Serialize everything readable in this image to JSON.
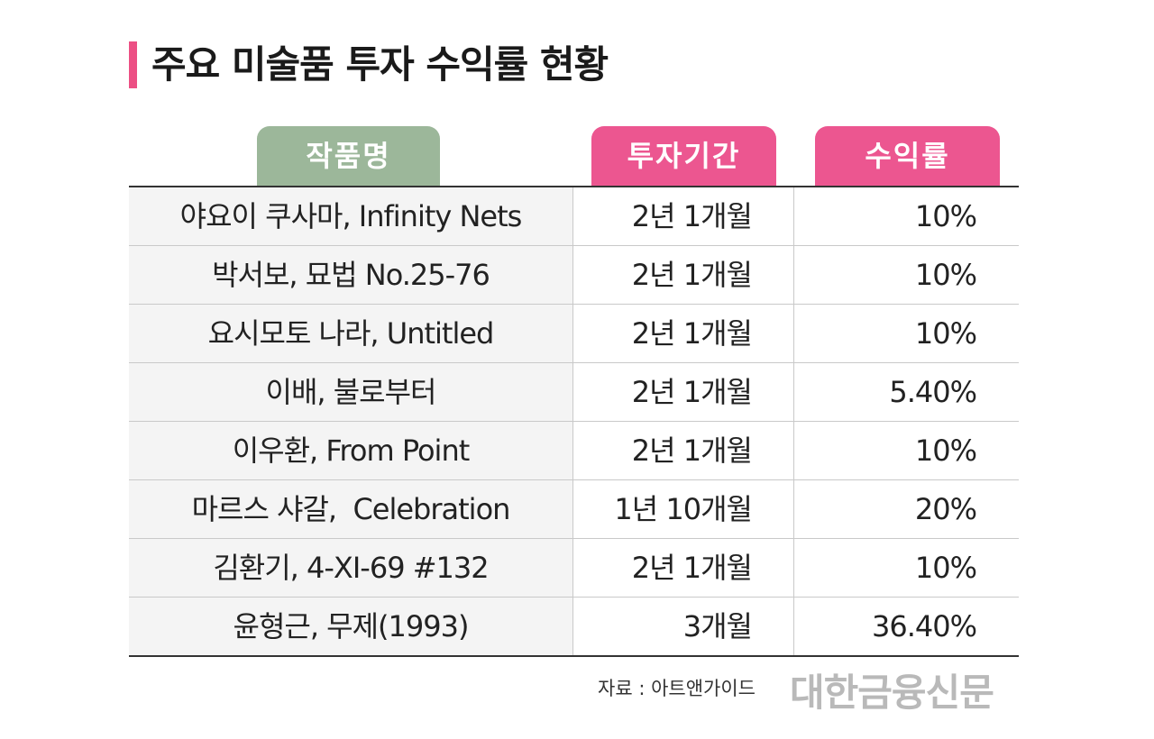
{
  "title": "주요 미술품 투자 수익률 현황",
  "headers": {
    "name": "작품명",
    "period": "투자기간",
    "rate": "수익률"
  },
  "rows": [
    {
      "name": "야요이 쿠사마, Infinity Nets",
      "period": "2년 1개월",
      "rate": "10%"
    },
    {
      "name": "박서보, 묘법 No.25-76",
      "period": "2년 1개월",
      "rate": "10%"
    },
    {
      "name": "요시모토 나라, Untitled",
      "period": "2년 1개월",
      "rate": "10%"
    },
    {
      "name": "이배, 불로부터",
      "period": "2년 1개월",
      "rate": "5.40%"
    },
    {
      "name": "이우환, From Point",
      "period": "2년 1개월",
      "rate": "10%"
    },
    {
      "name": "마르스 샤갈,  Celebration",
      "period": "1년 10개월",
      "rate": "20%"
    },
    {
      "name": "김환기, 4-XI-69 #132",
      "period": "2년 1개월",
      "rate": "10%"
    },
    {
      "name": "윤형근, 무제(1993)",
      "period": "3개월",
      "rate": "36.40%"
    }
  ],
  "source": "자료 : 아트앤가이드",
  "logo": "대한금융신문",
  "colors": {
    "accent_pink": "#ec5690",
    "header_green": "#9cb79a",
    "logo_gray": "#b9b9b9"
  }
}
